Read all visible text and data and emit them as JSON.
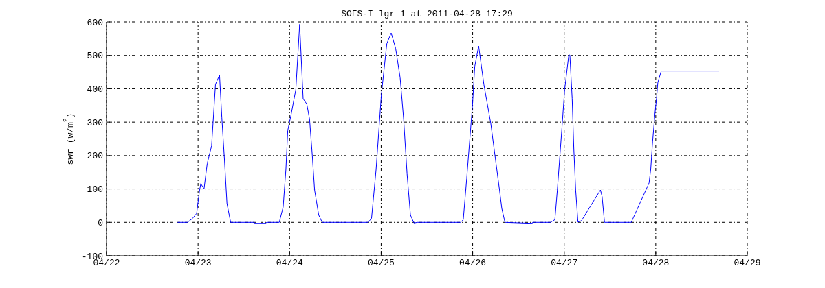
{
  "chart_data": {
    "type": "line",
    "title": "SOFS-I lgr 1 at 2011-04-28 17:29",
    "ylabel": "swr (w/m$^{2}$)",
    "x": [
      "2011-04-22T18:39",
      "2011-04-22T21:14",
      "2011-04-22T22:34",
      "2011-04-22T23:38",
      "2011-04-23T00:22",
      "2011-04-23T00:43",
      "2011-04-23T01:34",
      "2011-04-23T02:24",
      "2011-04-23T03:33",
      "2011-04-23T04:34",
      "2011-04-23T05:38",
      "2011-04-23T06:14",
      "2011-04-23T06:58",
      "2011-04-23T07:35",
      "2011-04-23T08:33",
      "2011-04-23T14:46",
      "2011-04-23T14:53",
      "2011-04-23T17:41",
      "2011-04-23T18:00",
      "2011-04-23T21:17",
      "2011-04-23T22:19",
      "2011-04-23T23:02",
      "2011-04-23T23:31",
      "2011-04-24T00:24",
      "2011-04-24T01:38",
      "2011-04-24T02:38",
      "2011-04-24T03:33",
      "2011-04-24T04:31",
      "2011-04-24T05:14",
      "2011-04-24T05:57",
      "2011-04-24T06:33",
      "2011-04-24T07:38",
      "2011-04-24T08:33",
      "2011-04-24T20:34",
      "2011-04-24T21:29",
      "2011-04-24T22:41",
      "2011-04-25T00:03",
      "2011-04-25T01:29",
      "2011-04-25T02:38",
      "2011-04-25T03:48",
      "2011-04-25T04:59",
      "2011-04-25T05:54",
      "2011-04-25T06:48",
      "2011-04-25T07:41",
      "2011-04-25T08:36",
      "2011-04-25T09:30",
      "2011-04-25T20:48",
      "2011-04-25T21:32",
      "2011-04-25T22:26",
      "2011-04-25T23:57",
      "2011-04-26T00:33",
      "2011-04-26T01:34",
      "2011-04-26T02:57",
      "2011-04-26T04:45",
      "2011-04-26T07:02",
      "2011-04-26T07:38",
      "2011-04-26T08:28",
      "2011-04-26T15:36",
      "2011-04-26T15:43",
      "2011-04-26T20:24",
      "2011-04-26T21:33",
      "2011-04-26T22:12",
      "2011-04-26T23:24",
      "2011-04-27T00:07",
      "2011-04-27T01:12",
      "2011-04-27T01:29",
      "2011-04-27T02:05",
      "2011-04-27T02:31",
      "2011-04-27T03:00",
      "2011-04-27T03:36",
      "2011-04-27T04:31",
      "2011-04-27T09:30",
      "2011-04-27T09:56",
      "2011-04-27T10:34",
      "2011-04-27T12:29",
      "2011-04-27T17:34",
      "2011-04-27T22:15",
      "2011-04-27T22:41",
      "2011-04-27T23:10",
      "2011-04-27T23:46",
      "2011-04-28T00:12",
      "2011-04-28T00:33",
      "2011-04-28T01:26",
      "2011-04-28T16:37"
    ],
    "series": [
      {
        "color": "#0000ff",
        "values": [
          0,
          0,
          12,
          27,
          94,
          116,
          100,
          176,
          229,
          413,
          441,
          313,
          179,
          56,
          0,
          0,
          -3,
          -3,
          0,
          0,
          46,
          159,
          275,
          323,
          398,
          593,
          370,
          354,
          309,
          200,
          97,
          22,
          0,
          0,
          12,
          159,
          381,
          535,
          567,
          521,
          433,
          309,
          145,
          22,
          -2,
          0,
          0,
          8,
          131,
          350,
          467,
          528,
          412,
          296,
          97,
          42,
          0,
          -3,
          0,
          0,
          8,
          97,
          282,
          398,
          501,
          501,
          371,
          220,
          97,
          1,
          5,
          97,
          77,
          0,
          0,
          0,
          118,
          159,
          241,
          323,
          371,
          419,
          453,
          453
        ]
      }
    ],
    "xlim": [
      "2011-04-22",
      "2011-04-29"
    ],
    "xticks": [
      {
        "value": "2011-04-22",
        "label": "04/22"
      },
      {
        "value": "2011-04-23",
        "label": "04/23"
      },
      {
        "value": "2011-04-24",
        "label": "04/24"
      },
      {
        "value": "2011-04-25",
        "label": "04/25"
      },
      {
        "value": "2011-04-26",
        "label": "04/26"
      },
      {
        "value": "2011-04-27",
        "label": "04/27"
      },
      {
        "value": "2011-04-28",
        "label": "04/28"
      },
      {
        "value": "2011-04-29",
        "label": "04/29"
      }
    ],
    "ylim": [
      -100,
      600
    ],
    "yticks": [
      -100,
      0,
      100,
      200,
      300,
      400,
      500,
      600
    ],
    "grid": true,
    "marker": "none",
    "line_style": "solid"
  }
}
